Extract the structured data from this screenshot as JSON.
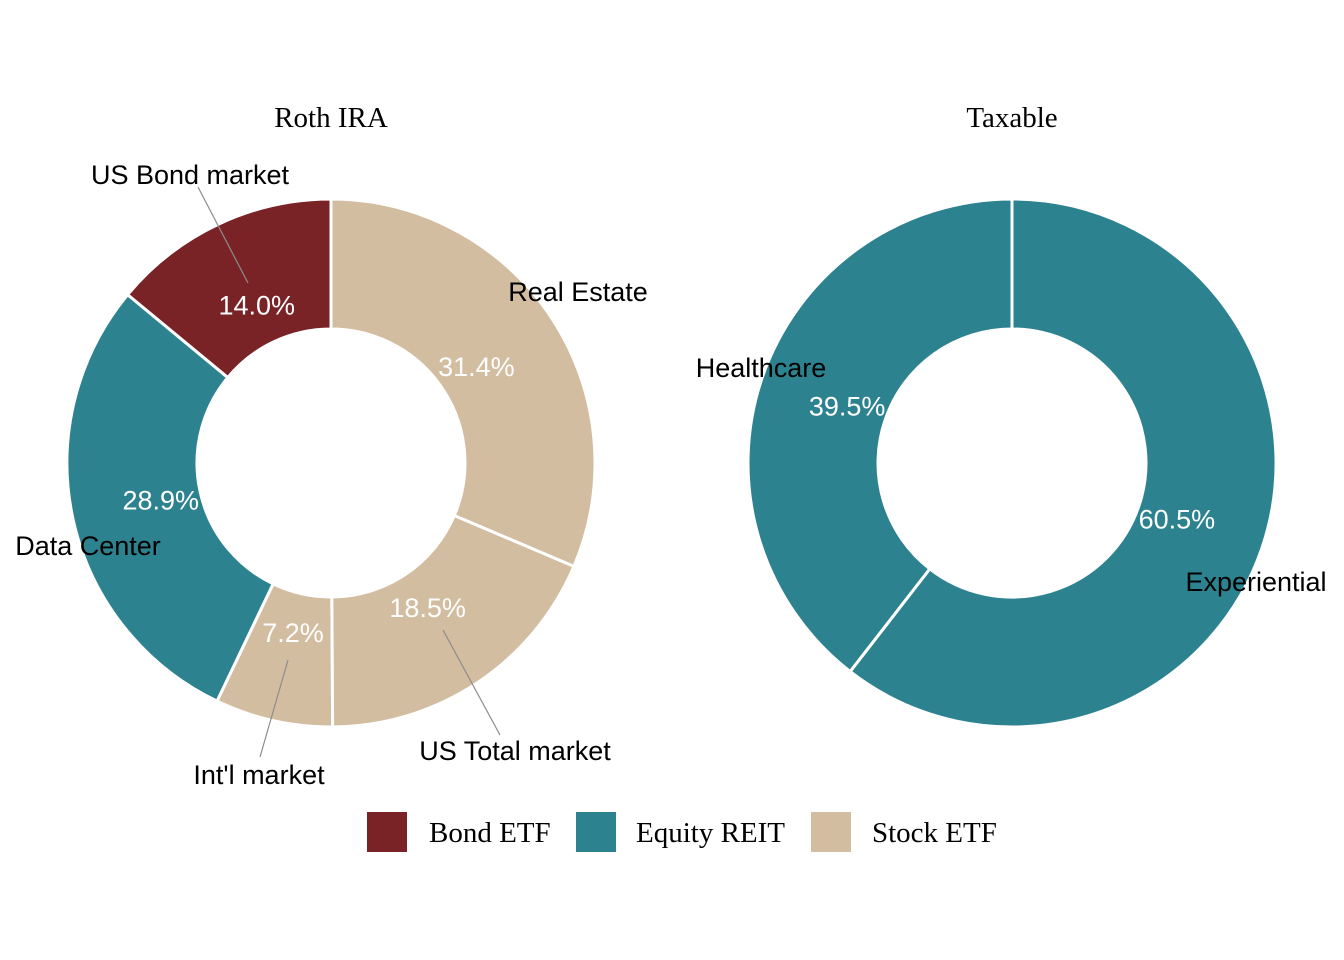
{
  "chart_data": [
    {
      "type": "pie",
      "donut": true,
      "title": "Roth IRA",
      "slices": [
        {
          "label": "US Bond market",
          "category": "Bond ETF",
          "value": 14.0,
          "pct_label": "14.0%"
        },
        {
          "label": "Data Center",
          "category": "Equity REIT",
          "value": 28.9,
          "pct_label": "28.9%"
        },
        {
          "label": "Int'l market",
          "category": "Stock ETF",
          "value": 7.2,
          "pct_label": "7.2%"
        },
        {
          "label": "US Total market",
          "category": "Stock ETF",
          "value": 18.5,
          "pct_label": "18.5%"
        },
        {
          "label": "Real Estate",
          "category": "Stock ETF",
          "value": 31.4,
          "pct_label": "31.4%"
        }
      ]
    },
    {
      "type": "pie",
      "donut": true,
      "title": "Taxable",
      "slices": [
        {
          "label": "Healthcare",
          "category": "Equity REIT",
          "value": 39.5,
          "pct_label": "39.5%"
        },
        {
          "label": "Experiential",
          "category": "Equity REIT",
          "value": 60.5,
          "pct_label": "60.5%"
        }
      ]
    }
  ],
  "legend": {
    "placement": "bottom",
    "items": [
      {
        "label": "Bond ETF",
        "color": "#7a2327"
      },
      {
        "label": "Equity REIT",
        "color": "#2d8290"
      },
      {
        "label": "Stock ETF",
        "color": "#d2bda0"
      }
    ]
  },
  "colors": {
    "Bond ETF": "#7a2327",
    "Equity REIT": "#2d8290",
    "Stock ETF": "#d2bda0"
  }
}
